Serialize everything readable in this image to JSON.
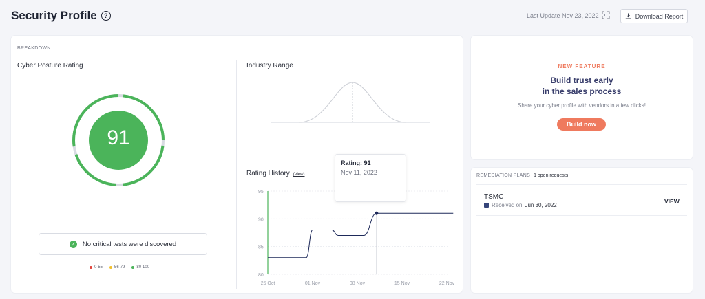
{
  "header": {
    "title": "Security Profile",
    "help_icon": "question-circle-icon",
    "last_update": "Last Update Nov 23, 2022",
    "download_label": "Download Report"
  },
  "breakdown": {
    "section_label": "BREAKDOWN",
    "cyber_posture_label": "Cyber Posture Rating",
    "score": "91",
    "no_critical_text": "No critical tests were discovered",
    "legend": [
      {
        "label": "0-55",
        "color": "#e2453c"
      },
      {
        "label": "56-79",
        "color": "#f2c12e"
      },
      {
        "label": "80-100",
        "color": "#4bb45a"
      }
    ],
    "industry_range_label": "Industry Range",
    "rating_history_label": "Rating History",
    "rating_history_view": "(View)",
    "tooltip": {
      "rating": "Rating: 91",
      "date": "Nov 11, 2022"
    }
  },
  "chart_data": {
    "type": "line",
    "x_ticks": [
      "25 Oct",
      "01 Nov",
      "08 Nov",
      "15 Nov",
      "22 Nov"
    ],
    "y_ticks": [
      "95",
      "90",
      "85",
      "80"
    ],
    "ylim": [
      80,
      95
    ],
    "series": [
      {
        "values": [
          {
            "x": "25 Oct",
            "y": 83
          },
          {
            "x": "31 Oct",
            "y": 83
          },
          {
            "x": "01 Nov",
            "y": 88
          },
          {
            "x": "04 Nov",
            "y": 88
          },
          {
            "x": "05 Nov",
            "y": 87
          },
          {
            "x": "09 Nov",
            "y": 87
          },
          {
            "x": "11 Nov",
            "y": 91
          },
          {
            "x": "23 Nov",
            "y": 91
          }
        ]
      }
    ],
    "highlight": {
      "x": "11 Nov",
      "y": 91
    },
    "colors": {
      "line": "#1e2a5a",
      "grid": "#e6e8ee",
      "axis_accent": "#4bb45a"
    }
  },
  "feature": {
    "tag": "NEW FEATURE",
    "headline_1": "Build trust early",
    "headline_2": "in the sales process",
    "sub": "Share your cyber profile with vendors in a few clicks!",
    "button": "Build now"
  },
  "remediation": {
    "label": "REMEDIATION PLANS",
    "count": "1 open requests",
    "item": {
      "name": "TSMC",
      "received_prefix": "Received on",
      "received_date": "Jun 30, 2022",
      "view": "VIEW"
    }
  }
}
